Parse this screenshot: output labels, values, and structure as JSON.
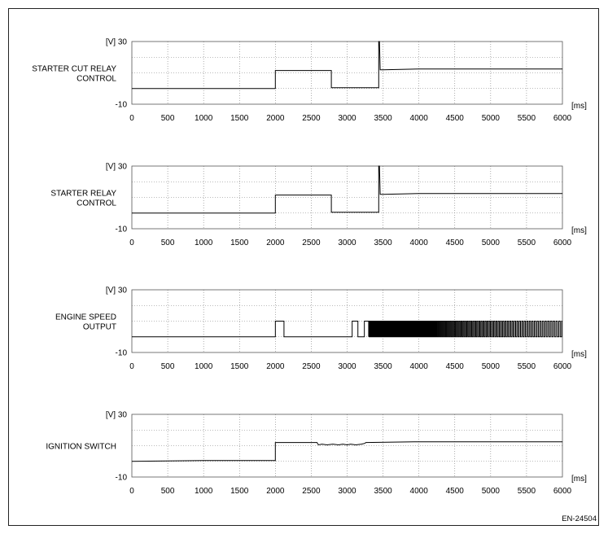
{
  "figure_code": "EN-24504",
  "chart_data": [
    {
      "type": "line",
      "label_lines": [
        "STARTER CUT RELAY",
        "CONTROL"
      ],
      "y_unit": "[V]",
      "ylim": [
        -10,
        30
      ],
      "y_ticks": [
        "30",
        "-10"
      ],
      "x_unit": "[ms]",
      "xlim": [
        0,
        6000
      ],
      "x_ticks": [
        "0",
        "500",
        "1000",
        "1500",
        "2000",
        "2500",
        "3000",
        "3500",
        "4000",
        "4500",
        "5000",
        "5500",
        "6000"
      ],
      "grid": true,
      "x": [
        0,
        2000,
        2000,
        2780,
        2780,
        3440,
        3440,
        3450,
        3460,
        3500,
        4000,
        6000
      ],
      "y": [
        0,
        0,
        11.5,
        11.5,
        0.5,
        0.5,
        30,
        30,
        12,
        12,
        12.5,
        12.5
      ]
    },
    {
      "type": "line",
      "label_lines": [
        "STARTER RELAY",
        "CONTROL"
      ],
      "y_unit": "[V]",
      "ylim": [
        -10,
        30
      ],
      "y_ticks": [
        "30",
        "-10"
      ],
      "x_unit": "[ms]",
      "xlim": [
        0,
        6000
      ],
      "x_ticks": [
        "0",
        "500",
        "1000",
        "1500",
        "2000",
        "2500",
        "3000",
        "3500",
        "4000",
        "4500",
        "5000",
        "5500",
        "6000"
      ],
      "grid": true,
      "x": [
        0,
        2000,
        2000,
        2780,
        2780,
        3440,
        3440,
        3450,
        3460,
        3500,
        4000,
        6000
      ],
      "y": [
        0,
        0,
        11.5,
        11.5,
        0.5,
        0.5,
        30,
        30,
        12,
        12,
        12.5,
        12.5
      ]
    },
    {
      "type": "line",
      "label_lines": [
        "ENGINE SPEED",
        "OUTPUT"
      ],
      "y_unit": "[V]",
      "ylim": [
        -10,
        30
      ],
      "y_ticks": [
        "30",
        "-10"
      ],
      "x_unit": "[ms]",
      "xlim": [
        0,
        6000
      ],
      "x_ticks": [
        "0",
        "500",
        "1000",
        "1500",
        "2000",
        "2500",
        "3000",
        "3500",
        "4000",
        "4500",
        "5000",
        "5500",
        "6000"
      ],
      "grid": true,
      "pulse_low": 0,
      "pulse_high": 10,
      "pulses": [
        [
          2000,
          2120
        ],
        [
          3070,
          3150
        ],
        [
          3240,
          3300
        ]
      ],
      "pulse_train": {
        "start": 3300,
        "end": 6000,
        "period_start": 14,
        "period_end": 40
      }
    },
    {
      "type": "line",
      "label_lines": [
        "IGNITION SWITCH"
      ],
      "y_unit": "[V]",
      "ylim": [
        -10,
        30
      ],
      "y_ticks": [
        "30",
        "-10"
      ],
      "x_unit": "[ms]",
      "xlim": [
        0,
        6000
      ],
      "x_ticks": [
        "0",
        "500",
        "1000",
        "1500",
        "2000",
        "2500",
        "3000",
        "3500",
        "4000",
        "4500",
        "5000",
        "5500",
        "6000"
      ],
      "grid": true,
      "x": [
        0,
        1000,
        1990,
        2000,
        2000,
        2580,
        2600,
        2650,
        2720,
        2800,
        2880,
        2940,
        3000,
        3050,
        3120,
        3200,
        3250,
        3260,
        4000,
        6000
      ],
      "y": [
        0,
        0.5,
        0.5,
        0.5,
        12,
        12,
        10.5,
        11,
        10.5,
        11,
        10.5,
        11,
        10.5,
        11,
        10.5,
        11,
        11.5,
        12,
        12.5,
        12.5
      ]
    }
  ]
}
